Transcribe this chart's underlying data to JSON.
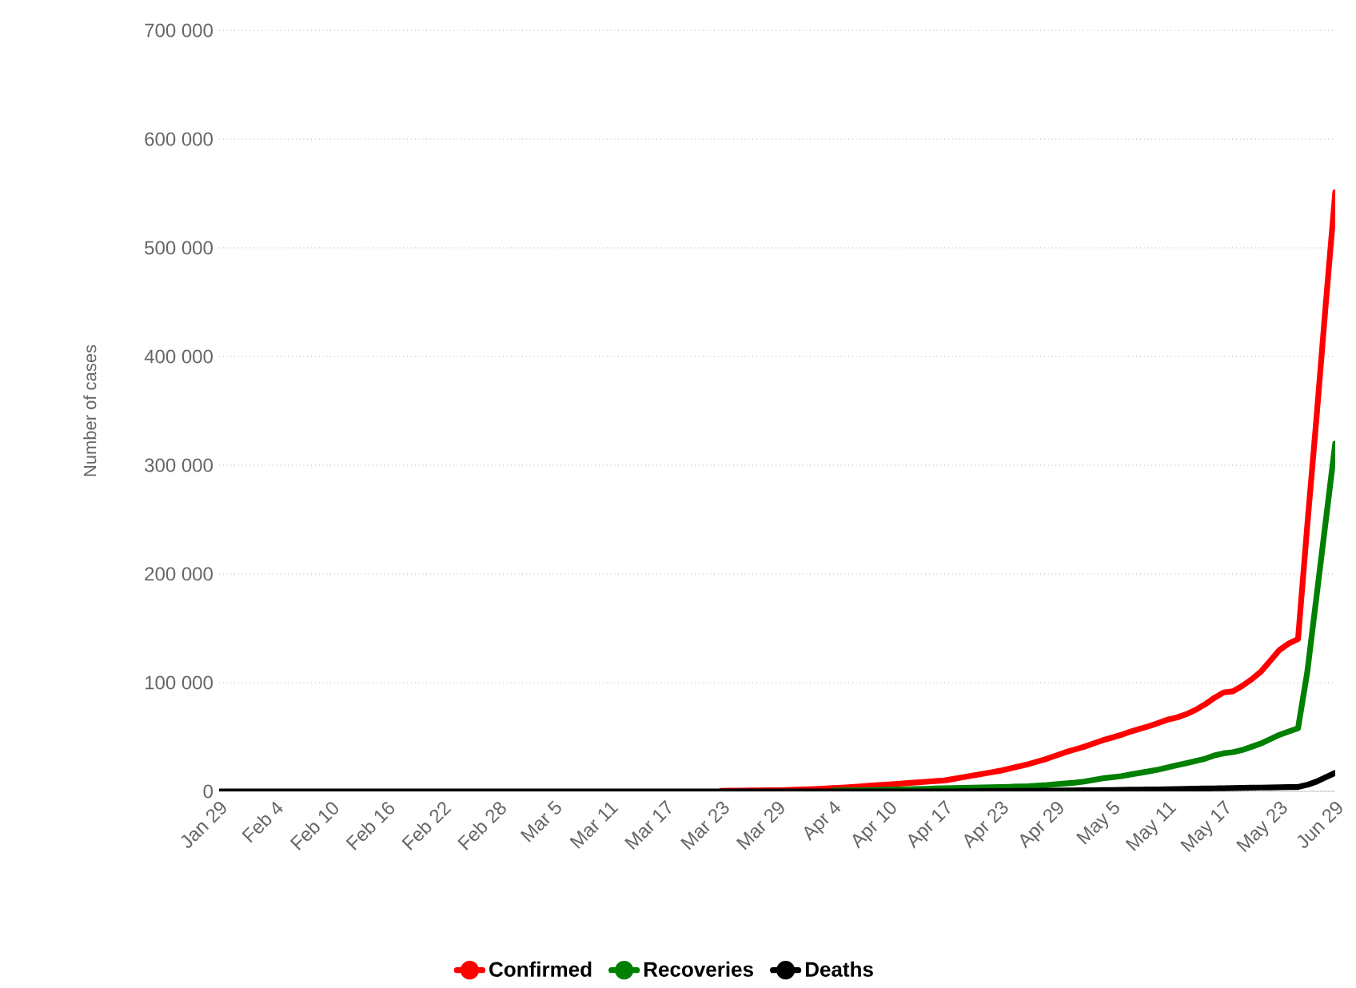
{
  "chart_data": {
    "type": "line",
    "ylabel": "Number of cases",
    "categories": [
      "Jan 29",
      null,
      null,
      null,
      null,
      null,
      "Feb 4",
      null,
      null,
      null,
      null,
      null,
      "Feb 10",
      null,
      null,
      null,
      null,
      null,
      "Feb 16",
      null,
      null,
      null,
      null,
      null,
      "Feb 22",
      null,
      null,
      null,
      null,
      null,
      "Feb 28",
      null,
      null,
      null,
      null,
      null,
      "Mar 5",
      null,
      null,
      null,
      null,
      null,
      "Mar 11",
      null,
      null,
      null,
      null,
      null,
      "Mar 17",
      null,
      null,
      null,
      null,
      null,
      "Mar 23",
      null,
      null,
      null,
      null,
      null,
      "Mar 29",
      null,
      null,
      null,
      null,
      null,
      "Apr 4",
      null,
      null,
      null,
      null,
      null,
      "Apr 10",
      null,
      null,
      null,
      null,
      null,
      "Apr 17",
      null,
      null,
      null,
      null,
      null,
      "Apr 23",
      null,
      null,
      null,
      null,
      null,
      "Apr 29",
      null,
      null,
      null,
      null,
      null,
      "May 5",
      null,
      null,
      null,
      null,
      null,
      "May 11",
      null,
      null,
      null,
      null,
      null,
      "May 17",
      null,
      null,
      null,
      null,
      null,
      "May 23",
      null,
      null,
      null,
      null,
      null,
      "Jun 29"
    ],
    "series": [
      {
        "name": "Confirmed",
        "color": "#ff0000",
        "values": [
          null,
          null,
          null,
          null,
          null,
          null,
          null,
          null,
          null,
          null,
          null,
          null,
          null,
          null,
          null,
          null,
          null,
          null,
          null,
          null,
          null,
          null,
          null,
          null,
          null,
          null,
          null,
          null,
          null,
          null,
          null,
          null,
          null,
          null,
          null,
          null,
          null,
          null,
          null,
          null,
          null,
          null,
          null,
          null,
          null,
          null,
          null,
          null,
          null,
          null,
          null,
          null,
          null,
          null,
          500,
          600,
          700,
          800,
          900,
          1000,
          1100,
          1300,
          1500,
          1800,
          2100,
          2500,
          3000,
          3500,
          4000,
          4600,
          5200,
          5800,
          6400,
          7000,
          7600,
          8200,
          8800,
          9400,
          10000,
          11500,
          13000,
          14500,
          16000,
          17500,
          19000,
          21000,
          23000,
          25000,
          27500,
          30000,
          33000,
          36000,
          38500,
          41000,
          44000,
          47000,
          49500,
          52000,
          55000,
          57500,
          60000,
          63000,
          66000,
          68000,
          71000,
          75000,
          80000,
          86000,
          91000,
          92000,
          97000,
          103000,
          110000,
          120000,
          130000,
          136000,
          140000,
          245000,
          345000,
          450000,
          551000
        ]
      },
      {
        "name": "Recoveries",
        "color": "#008000",
        "values": [
          null,
          null,
          null,
          null,
          null,
          null,
          null,
          null,
          null,
          null,
          null,
          null,
          null,
          null,
          null,
          null,
          null,
          null,
          null,
          null,
          null,
          null,
          null,
          null,
          null,
          null,
          null,
          null,
          null,
          null,
          null,
          null,
          null,
          null,
          null,
          null,
          null,
          null,
          null,
          null,
          null,
          null,
          null,
          null,
          null,
          null,
          null,
          null,
          null,
          null,
          null,
          null,
          null,
          null,
          null,
          null,
          null,
          null,
          null,
          null,
          null,
          null,
          null,
          null,
          null,
          null,
          800,
          900,
          1000,
          1100,
          1200,
          1400,
          1600,
          1800,
          2000,
          2200,
          2400,
          2600,
          2800,
          3000,
          3200,
          3400,
          3600,
          3800,
          4000,
          4200,
          4500,
          4800,
          5300,
          5800,
          6500,
          7200,
          8000,
          9000,
          10500,
          12000,
          13000,
          14000,
          15500,
          17000,
          18500,
          20000,
          22000,
          24000,
          26000,
          28000,
          30000,
          33000,
          35000,
          36000,
          38000,
          41000,
          44000,
          48000,
          52000,
          55000,
          58000,
          110000,
          180000,
          250000,
          320000
        ]
      },
      {
        "name": "Deaths",
        "color": "#000000",
        "values": [
          0,
          0,
          0,
          0,
          0,
          0,
          0,
          0,
          0,
          0,
          0,
          0,
          0,
          0,
          0,
          0,
          0,
          0,
          0,
          0,
          0,
          0,
          0,
          0,
          0,
          0,
          0,
          0,
          0,
          0,
          0,
          0,
          0,
          0,
          0,
          0,
          0,
          0,
          0,
          0,
          0,
          0,
          0,
          0,
          0,
          0,
          0,
          0,
          0,
          0,
          0,
          0,
          0,
          0,
          0,
          0,
          0,
          0,
          0,
          0,
          0,
          0,
          0,
          0,
          0,
          0,
          0,
          0,
          0,
          0,
          0,
          0,
          0,
          0,
          0,
          0,
          0,
          0,
          0,
          0,
          100,
          150,
          200,
          250,
          300,
          350,
          400,
          450,
          500,
          600,
          700,
          800,
          900,
          1000,
          1100,
          1200,
          1300,
          1400,
          1500,
          1600,
          1700,
          1850,
          2000,
          2150,
          2300,
          2450,
          2600,
          2750,
          2900,
          3050,
          3200,
          3350,
          3500,
          3650,
          3800,
          3900,
          4000,
          6000,
          9000,
          13000,
          17000
        ]
      }
    ],
    "ylim": [
      0,
      700000
    ],
    "yticks": [
      {
        "value": 0,
        "label": "0"
      },
      {
        "value": 100000,
        "label": "100 000"
      },
      {
        "value": 200000,
        "label": "200 000"
      },
      {
        "value": 300000,
        "label": "300 000"
      },
      {
        "value": 400000,
        "label": "400 000"
      },
      {
        "value": 500000,
        "label": "500 000"
      },
      {
        "value": 600000,
        "label": "600 000"
      },
      {
        "value": 700000,
        "label": "700 000"
      }
    ],
    "grid": "y",
    "legend": "bottom",
    "line_style": "solid"
  }
}
